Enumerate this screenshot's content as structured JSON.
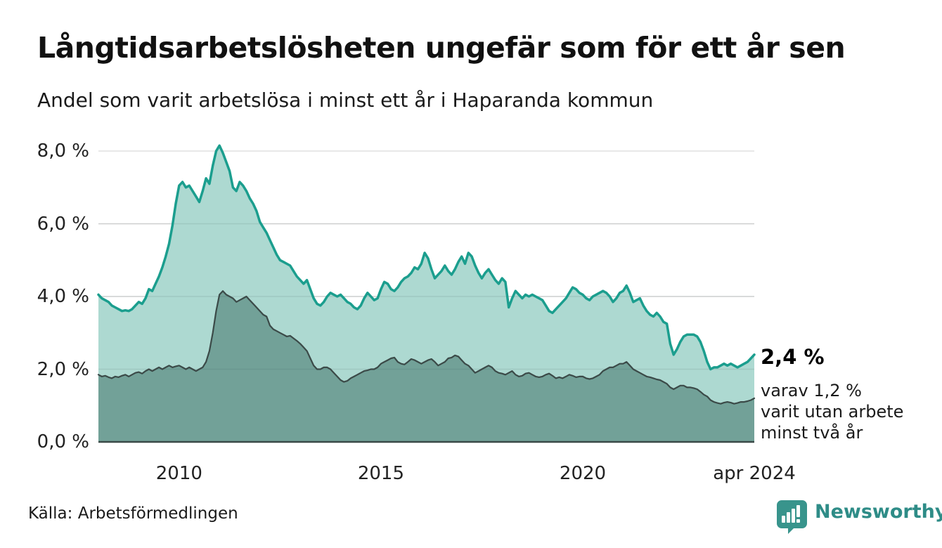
{
  "header": {
    "title": "Långtidsarbetslösheten ungefär som för ett år sen",
    "subtitle": "Andel som varit arbetslösa i minst ett år i Haparanda kommun"
  },
  "chart_data": {
    "type": "area",
    "title": "Långtidsarbetslösheten ungefär som för ett år sen",
    "subtitle": "Andel som varit arbetslösa i minst ett år i Haparanda kommun",
    "unit": "%",
    "frequency": "monthly",
    "x_start": "2008-01",
    "x_end": "2024-04",
    "grid": "horizontal",
    "legend": "none",
    "y_axis": {
      "min": 0,
      "max": 8,
      "ticks": [
        {
          "value": 0,
          "label": "0,0 %"
        },
        {
          "value": 2,
          "label": "2,0 %"
        },
        {
          "value": 4,
          "label": "4,0 %"
        },
        {
          "value": 6,
          "label": "6,0 %"
        },
        {
          "value": 8,
          "label": "8,0 %"
        }
      ]
    },
    "x_axis": {
      "ticks": [
        {
          "index": 24,
          "label": "2010"
        },
        {
          "index": 84,
          "label": "2015"
        },
        {
          "index": 144,
          "label": "2020"
        },
        {
          "index": 195,
          "label": "apr 2024"
        }
      ]
    },
    "series": [
      {
        "name": "minst ett år",
        "line_color": "#1B9E8E",
        "fill_color": "#AAD7CF",
        "line_width": 3.5,
        "values": [
          4.05,
          3.95,
          3.9,
          3.85,
          3.75,
          3.7,
          3.65,
          3.6,
          3.62,
          3.6,
          3.65,
          3.75,
          3.85,
          3.8,
          3.95,
          4.2,
          4.15,
          4.35,
          4.55,
          4.8,
          5.1,
          5.45,
          5.95,
          6.55,
          7.05,
          7.15,
          7.0,
          7.05,
          6.9,
          6.75,
          6.6,
          6.9,
          7.25,
          7.1,
          7.6,
          8.0,
          8.15,
          7.95,
          7.7,
          7.45,
          7.0,
          6.9,
          7.15,
          7.05,
          6.9,
          6.7,
          6.55,
          6.35,
          6.05,
          5.9,
          5.75,
          5.55,
          5.35,
          5.15,
          5.0,
          4.95,
          4.9,
          4.85,
          4.7,
          4.55,
          4.45,
          4.35,
          4.45,
          4.2,
          3.95,
          3.8,
          3.75,
          3.85,
          4.0,
          4.1,
          4.05,
          4.0,
          4.05,
          3.95,
          3.85,
          3.8,
          3.7,
          3.65,
          3.75,
          3.95,
          4.1,
          4.0,
          3.9,
          3.95,
          4.2,
          4.4,
          4.35,
          4.2,
          4.15,
          4.25,
          4.4,
          4.5,
          4.55,
          4.65,
          4.8,
          4.75,
          4.9,
          5.2,
          5.05,
          4.75,
          4.5,
          4.6,
          4.7,
          4.85,
          4.7,
          4.6,
          4.75,
          4.95,
          5.1,
          4.9,
          5.2,
          5.1,
          4.85,
          4.65,
          4.5,
          4.65,
          4.75,
          4.6,
          4.45,
          4.35,
          4.5,
          4.4,
          3.7,
          3.95,
          4.15,
          4.05,
          3.95,
          4.05,
          4.0,
          4.05,
          4.0,
          3.95,
          3.9,
          3.75,
          3.6,
          3.55,
          3.65,
          3.75,
          3.85,
          3.95,
          4.1,
          4.25,
          4.2,
          4.1,
          4.05,
          3.95,
          3.9,
          4.0,
          4.05,
          4.1,
          4.15,
          4.1,
          4.0,
          3.85,
          3.95,
          4.1,
          4.15,
          4.3,
          4.1,
          3.85,
          3.9,
          3.95,
          3.75,
          3.6,
          3.5,
          3.45,
          3.55,
          3.45,
          3.3,
          3.25,
          2.7,
          2.4,
          2.55,
          2.75,
          2.9,
          2.95,
          2.95,
          2.95,
          2.9,
          2.75,
          2.5,
          2.2,
          2.0,
          2.05,
          2.05,
          2.1,
          2.15,
          2.1,
          2.15,
          2.1,
          2.05,
          2.1,
          2.15,
          2.2,
          2.3,
          2.4
        ]
      },
      {
        "name": "minst två år",
        "line_color": "#3B4A48",
        "fill_color": "#6F9E96",
        "line_width": 2.2,
        "values": [
          1.85,
          1.8,
          1.82,
          1.78,
          1.75,
          1.8,
          1.78,
          1.82,
          1.85,
          1.8,
          1.85,
          1.9,
          1.92,
          1.88,
          1.95,
          2.0,
          1.95,
          2.0,
          2.05,
          2.0,
          2.05,
          2.1,
          2.05,
          2.08,
          2.1,
          2.05,
          2.0,
          2.05,
          2.0,
          1.95,
          2.0,
          2.05,
          2.2,
          2.5,
          3.0,
          3.6,
          4.05,
          4.15,
          4.05,
          4.0,
          3.95,
          3.85,
          3.9,
          3.95,
          4.0,
          3.9,
          3.8,
          3.7,
          3.6,
          3.5,
          3.45,
          3.2,
          3.1,
          3.05,
          3.0,
          2.95,
          2.9,
          2.92,
          2.85,
          2.78,
          2.7,
          2.6,
          2.5,
          2.3,
          2.1,
          2.0,
          2.0,
          2.05,
          2.05,
          2.0,
          1.9,
          1.8,
          1.7,
          1.65,
          1.68,
          1.75,
          1.8,
          1.85,
          1.9,
          1.95,
          1.97,
          2.0,
          2.0,
          2.05,
          2.15,
          2.2,
          2.25,
          2.3,
          2.32,
          2.2,
          2.15,
          2.13,
          2.2,
          2.28,
          2.25,
          2.2,
          2.15,
          2.2,
          2.25,
          2.28,
          2.2,
          2.1,
          2.15,
          2.2,
          2.3,
          2.32,
          2.38,
          2.35,
          2.25,
          2.15,
          2.1,
          2.0,
          1.9,
          1.95,
          2.0,
          2.05,
          2.1,
          2.05,
          1.95,
          1.9,
          1.88,
          1.85,
          1.9,
          1.95,
          1.85,
          1.8,
          1.82,
          1.88,
          1.9,
          1.85,
          1.8,
          1.78,
          1.8,
          1.85,
          1.88,
          1.82,
          1.75,
          1.78,
          1.75,
          1.8,
          1.85,
          1.82,
          1.78,
          1.8,
          1.8,
          1.75,
          1.73,
          1.75,
          1.8,
          1.85,
          1.95,
          2.0,
          2.05,
          2.05,
          2.1,
          2.15,
          2.15,
          2.2,
          2.1,
          2.0,
          1.95,
          1.9,
          1.85,
          1.8,
          1.78,
          1.75,
          1.72,
          1.7,
          1.65,
          1.6,
          1.5,
          1.45,
          1.5,
          1.55,
          1.55,
          1.5,
          1.5,
          1.48,
          1.45,
          1.38,
          1.3,
          1.25,
          1.15,
          1.1,
          1.07,
          1.05,
          1.08,
          1.1,
          1.08,
          1.05,
          1.07,
          1.1,
          1.1,
          1.12,
          1.15,
          1.2
        ]
      }
    ],
    "annotations": {
      "latest_value": "2,4 %",
      "latest_sub_lines": [
        "varav 1,2 %",
        "varit utan arbete",
        "minst två år"
      ]
    }
  },
  "footer": {
    "source": "Källa: Arbetsförmedlingen",
    "brand": "Newsworthy"
  },
  "colors": {
    "background": "#FFFFFF",
    "title": "#111111",
    "gridline": "#E0E0E0",
    "axis_line": "#3B4A48",
    "series1_line": "#1B9E8E",
    "series1_fill": "#AAD7CF",
    "series2_line": "#3B4A48",
    "series2_fill": "#6F9E96",
    "brand_teal": "#2E8C87",
    "logo_bg": "#38948C"
  }
}
